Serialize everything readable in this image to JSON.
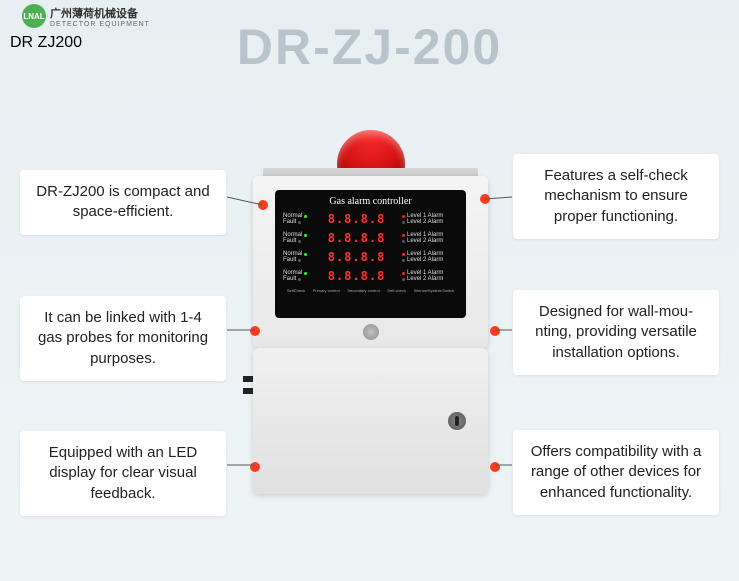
{
  "logo": {
    "badge_text": "LNAL",
    "badge_bg": "#4caf50",
    "cn": "广州薄荷机械设备",
    "en": "DETECTOR EQUIPMENT"
  },
  "model_label": "DR ZJ200",
  "title": "DR-ZJ-200",
  "title_color": "#b8c4cc",
  "device": {
    "alarm_color_inner": "#ff3030",
    "alarm_color_outer": "#a00000",
    "screen_title": "Gas alarm controller",
    "rows": [
      {
        "normal": "Normal",
        "fault": "Fault",
        "digits": "8.8.8.8",
        "l1": "Level 1 Alarm",
        "l2": "Level 2 Alarm"
      },
      {
        "normal": "Normal",
        "fault": "Fault",
        "digits": "8.8.8.8",
        "l1": "Level 1 Alarm",
        "l2": "Level 2 Alarm"
      },
      {
        "normal": "Normal",
        "fault": "Fault",
        "digits": "8.8.8.8",
        "l1": "Level 1 Alarm",
        "l2": "Level 2 Alarm"
      },
      {
        "normal": "Normal",
        "fault": "Fault",
        "digits": "8.8.8.8",
        "l1": "Level 1 Alarm",
        "l2": "Level 2 Alarm"
      }
    ],
    "bottom_labels": [
      "SelfCheck",
      "Primary control",
      "Secondary control",
      "Self-check",
      "Silence/System/Switch"
    ]
  },
  "callouts": {
    "l1": "DR-ZJ200 is compact and space-efficient.",
    "l2": "It can be linked with 1-4 gas probes for monitoring purposes.",
    "l3": "Equipped with an LED display for clear visual feedback.",
    "r1": "Features a self-check mechanism to ensure proper functioning.",
    "r2": "Designed for wall-mou- nting, providing versatile installation options.",
    "r3": "Offers compatibility with a range of other devices for enhanced functionality."
  },
  "colors": {
    "bg_top": "#e8eff2",
    "bg_bottom": "#eef4f6",
    "callout_bg": "#ffffff",
    "connector_dot": "#ff3a1f",
    "seven_seg": "#ff3030"
  }
}
